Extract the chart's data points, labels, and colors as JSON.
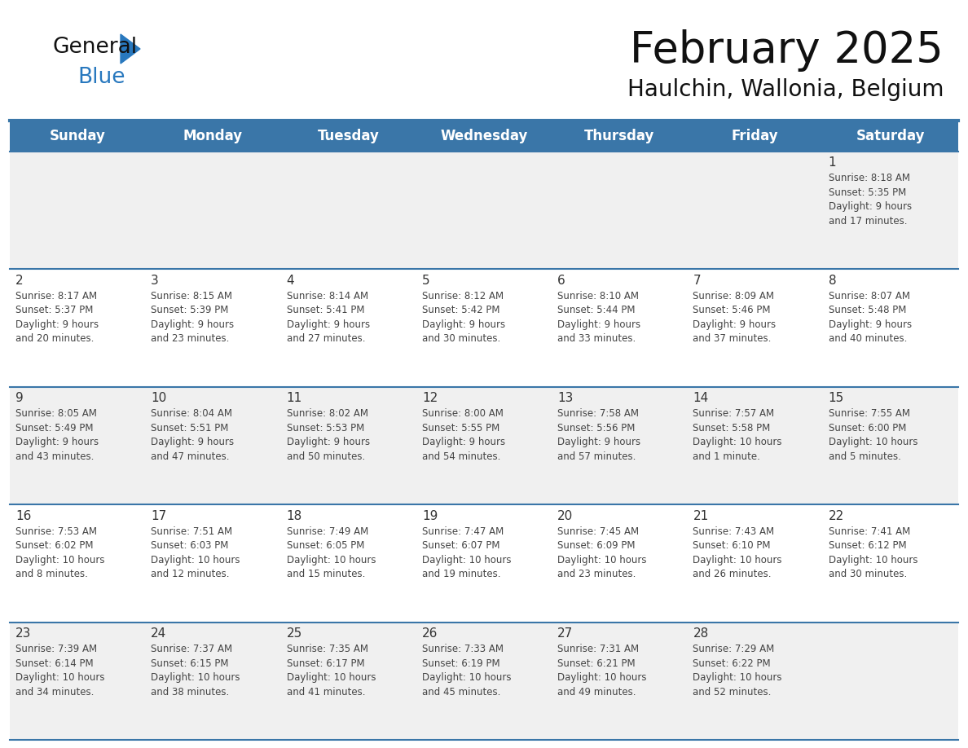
{
  "title": "February 2025",
  "subtitle": "Haulchin, Wallonia, Belgium",
  "days_of_week": [
    "Sunday",
    "Monday",
    "Tuesday",
    "Wednesday",
    "Thursday",
    "Friday",
    "Saturday"
  ],
  "header_bg": "#3A76A8",
  "header_text_color": "#FFFFFF",
  "cell_bg_odd": "#F0F0F0",
  "cell_bg_even": "#FFFFFF",
  "line_color": "#3A76A8",
  "text_color": "#444444",
  "calendar_data": [
    [
      null,
      null,
      null,
      null,
      null,
      null,
      {
        "day": 1,
        "sunrise": "8:18 AM",
        "sunset": "5:35 PM",
        "daylight_l1": "Daylight: 9 hours",
        "daylight_l2": "and 17 minutes."
      }
    ],
    [
      {
        "day": 2,
        "sunrise": "8:17 AM",
        "sunset": "5:37 PM",
        "daylight_l1": "Daylight: 9 hours",
        "daylight_l2": "and 20 minutes."
      },
      {
        "day": 3,
        "sunrise": "8:15 AM",
        "sunset": "5:39 PM",
        "daylight_l1": "Daylight: 9 hours",
        "daylight_l2": "and 23 minutes."
      },
      {
        "day": 4,
        "sunrise": "8:14 AM",
        "sunset": "5:41 PM",
        "daylight_l1": "Daylight: 9 hours",
        "daylight_l2": "and 27 minutes."
      },
      {
        "day": 5,
        "sunrise": "8:12 AM",
        "sunset": "5:42 PM",
        "daylight_l1": "Daylight: 9 hours",
        "daylight_l2": "and 30 minutes."
      },
      {
        "day": 6,
        "sunrise": "8:10 AM",
        "sunset": "5:44 PM",
        "daylight_l1": "Daylight: 9 hours",
        "daylight_l2": "and 33 minutes."
      },
      {
        "day": 7,
        "sunrise": "8:09 AM",
        "sunset": "5:46 PM",
        "daylight_l1": "Daylight: 9 hours",
        "daylight_l2": "and 37 minutes."
      },
      {
        "day": 8,
        "sunrise": "8:07 AM",
        "sunset": "5:48 PM",
        "daylight_l1": "Daylight: 9 hours",
        "daylight_l2": "and 40 minutes."
      }
    ],
    [
      {
        "day": 9,
        "sunrise": "8:05 AM",
        "sunset": "5:49 PM",
        "daylight_l1": "Daylight: 9 hours",
        "daylight_l2": "and 43 minutes."
      },
      {
        "day": 10,
        "sunrise": "8:04 AM",
        "sunset": "5:51 PM",
        "daylight_l1": "Daylight: 9 hours",
        "daylight_l2": "and 47 minutes."
      },
      {
        "day": 11,
        "sunrise": "8:02 AM",
        "sunset": "5:53 PM",
        "daylight_l1": "Daylight: 9 hours",
        "daylight_l2": "and 50 minutes."
      },
      {
        "day": 12,
        "sunrise": "8:00 AM",
        "sunset": "5:55 PM",
        "daylight_l1": "Daylight: 9 hours",
        "daylight_l2": "and 54 minutes."
      },
      {
        "day": 13,
        "sunrise": "7:58 AM",
        "sunset": "5:56 PM",
        "daylight_l1": "Daylight: 9 hours",
        "daylight_l2": "and 57 minutes."
      },
      {
        "day": 14,
        "sunrise": "7:57 AM",
        "sunset": "5:58 PM",
        "daylight_l1": "Daylight: 10 hours",
        "daylight_l2": "and 1 minute."
      },
      {
        "day": 15,
        "sunrise": "7:55 AM",
        "sunset": "6:00 PM",
        "daylight_l1": "Daylight: 10 hours",
        "daylight_l2": "and 5 minutes."
      }
    ],
    [
      {
        "day": 16,
        "sunrise": "7:53 AM",
        "sunset": "6:02 PM",
        "daylight_l1": "Daylight: 10 hours",
        "daylight_l2": "and 8 minutes."
      },
      {
        "day": 17,
        "sunrise": "7:51 AM",
        "sunset": "6:03 PM",
        "daylight_l1": "Daylight: 10 hours",
        "daylight_l2": "and 12 minutes."
      },
      {
        "day": 18,
        "sunrise": "7:49 AM",
        "sunset": "6:05 PM",
        "daylight_l1": "Daylight: 10 hours",
        "daylight_l2": "and 15 minutes."
      },
      {
        "day": 19,
        "sunrise": "7:47 AM",
        "sunset": "6:07 PM",
        "daylight_l1": "Daylight: 10 hours",
        "daylight_l2": "and 19 minutes."
      },
      {
        "day": 20,
        "sunrise": "7:45 AM",
        "sunset": "6:09 PM",
        "daylight_l1": "Daylight: 10 hours",
        "daylight_l2": "and 23 minutes."
      },
      {
        "day": 21,
        "sunrise": "7:43 AM",
        "sunset": "6:10 PM",
        "daylight_l1": "Daylight: 10 hours",
        "daylight_l2": "and 26 minutes."
      },
      {
        "day": 22,
        "sunrise": "7:41 AM",
        "sunset": "6:12 PM",
        "daylight_l1": "Daylight: 10 hours",
        "daylight_l2": "and 30 minutes."
      }
    ],
    [
      {
        "day": 23,
        "sunrise": "7:39 AM",
        "sunset": "6:14 PM",
        "daylight_l1": "Daylight: 10 hours",
        "daylight_l2": "and 34 minutes."
      },
      {
        "day": 24,
        "sunrise": "7:37 AM",
        "sunset": "6:15 PM",
        "daylight_l1": "Daylight: 10 hours",
        "daylight_l2": "and 38 minutes."
      },
      {
        "day": 25,
        "sunrise": "7:35 AM",
        "sunset": "6:17 PM",
        "daylight_l1": "Daylight: 10 hours",
        "daylight_l2": "and 41 minutes."
      },
      {
        "day": 26,
        "sunrise": "7:33 AM",
        "sunset": "6:19 PM",
        "daylight_l1": "Daylight: 10 hours",
        "daylight_l2": "and 45 minutes."
      },
      {
        "day": 27,
        "sunrise": "7:31 AM",
        "sunset": "6:21 PM",
        "daylight_l1": "Daylight: 10 hours",
        "daylight_l2": "and 49 minutes."
      },
      {
        "day": 28,
        "sunrise": "7:29 AM",
        "sunset": "6:22 PM",
        "daylight_l1": "Daylight: 10 hours",
        "daylight_l2": "and 52 minutes."
      },
      null
    ]
  ]
}
